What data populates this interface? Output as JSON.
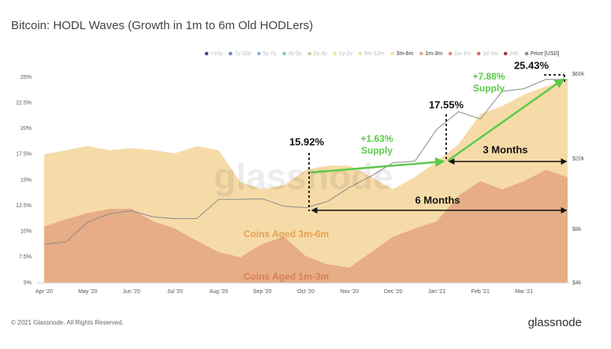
{
  "chart_data": {
    "type": "area",
    "title": "Bitcoin: HODL Waves (Growth in 1m to 6m Old HODLers)",
    "categories": [
      "Apr '20",
      null,
      "May '20",
      null,
      "Jun '20",
      null,
      "Jul '20",
      null,
      "Aug '20",
      null,
      "Sep '20",
      null,
      "Oct '20",
      null,
      "Nov '20",
      null,
      "Dec '20",
      null,
      "Jan '21",
      null,
      "Feb '21",
      null,
      "Mar '21",
      null,
      null
    ],
    "series": [
      {
        "name": ">10y",
        "color": "#3c4f8a",
        "visible": false
      },
      {
        "name": "7y-10y",
        "color": "#6d86c9",
        "visible": false
      },
      {
        "name": "5y-7y",
        "color": "#8ab4d8",
        "visible": false
      },
      {
        "name": "3y-5y",
        "color": "#88c9bd",
        "visible": false
      },
      {
        "name": "2y-3y",
        "color": "#b5dd9c",
        "visible": false
      },
      {
        "name": "1y-2y",
        "color": "#e6e68a",
        "visible": false
      },
      {
        "name": "6m-12m",
        "color": "#f5e18f",
        "visible": false
      },
      {
        "name": "3m-6m",
        "color": "#f6dba8",
        "visible": true,
        "values": [
          7.0,
          6.7,
          6.5,
          5.7,
          5.9,
          6.9,
          7.3,
          9.2,
          9.9,
          7.3,
          5.3,
          5.0,
          8.4,
          9.6,
          9.9,
          7.3,
          4.6,
          5.0,
          5.8,
          5.0,
          6.5,
          8.1,
          8.4,
          8.1,
          9.5
        ]
      },
      {
        "name": "1m-3m",
        "color": "#e6ad86",
        "visible": true,
        "values": [
          10.5,
          11.2,
          11.8,
          12.2,
          12.2,
          11.0,
          10.3,
          9.1,
          8.0,
          7.5,
          8.8,
          9.5,
          7.6,
          6.8,
          6.5,
          8.0,
          9.5,
          10.3,
          11.0,
          13.5,
          14.9,
          14.1,
          14.9,
          16.0,
          15.3
        ]
      },
      {
        "name": "1w-1m",
        "color": "#e9857a",
        "visible": false
      },
      {
        "name": "1d-1w",
        "color": "#d9685e",
        "visible": false
      },
      {
        "name": "24h",
        "color": "#9e3f3f",
        "visible": false
      },
      {
        "name": "Price [USD]",
        "color": "#8a8a8a",
        "visible": true,
        "axis": "y2",
        "kind": "line",
        "values": [
          6600,
          6800,
          8800,
          9800,
          10200,
          9400,
          9200,
          9200,
          11800,
          11800,
          11900,
          10800,
          10600,
          11500,
          13800,
          16000,
          19000,
          19400,
          29300,
          36800,
          33500,
          48000,
          49600,
          56000,
          55800
        ]
      }
    ],
    "ylim": [
      5,
      25
    ],
    "yticks": [
      {
        "value": 5,
        "label": "5%"
      },
      {
        "value": 7.5,
        "label": "7.5%"
      },
      {
        "value": 10,
        "label": "10%"
      },
      {
        "value": 12.5,
        "label": "12.5%"
      },
      {
        "value": 15,
        "label": "15%"
      },
      {
        "value": 17.5,
        "label": "17.5%"
      },
      {
        "value": 20,
        "label": "20%"
      },
      {
        "value": 22.5,
        "label": "22.5%"
      },
      {
        "value": 25,
        "label": "25%"
      }
    ],
    "y2lim": [
      4000,
      60000
    ],
    "y2ticks": [
      {
        "value": 4000,
        "label": "$4k"
      },
      {
        "value": 8000,
        "label": "$8k"
      },
      {
        "value": 20000,
        "label": "$20k"
      },
      {
        "value": 60000,
        "label": "$60k"
      }
    ],
    "y2_log_scale": true,
    "annotations": {
      "start_value": "15.92%",
      "first_change": "+1.63%",
      "first_supply": "Supply",
      "mid_value": "17.55%",
      "second_change": "+7.88%",
      "second_supply": "Supply",
      "end_value": "25.43%",
      "short_span": "3 Months",
      "long_span": "6 Months",
      "label_3m_6m": "Coins Aged 3m-6m",
      "label_1m_3m": "Coins Aged 1m-3m",
      "watermark": "glassnode"
    },
    "footer": {
      "copyright": "© 2021 Glassnode. All Rights Reserved.",
      "logo": "glassnode"
    }
  }
}
